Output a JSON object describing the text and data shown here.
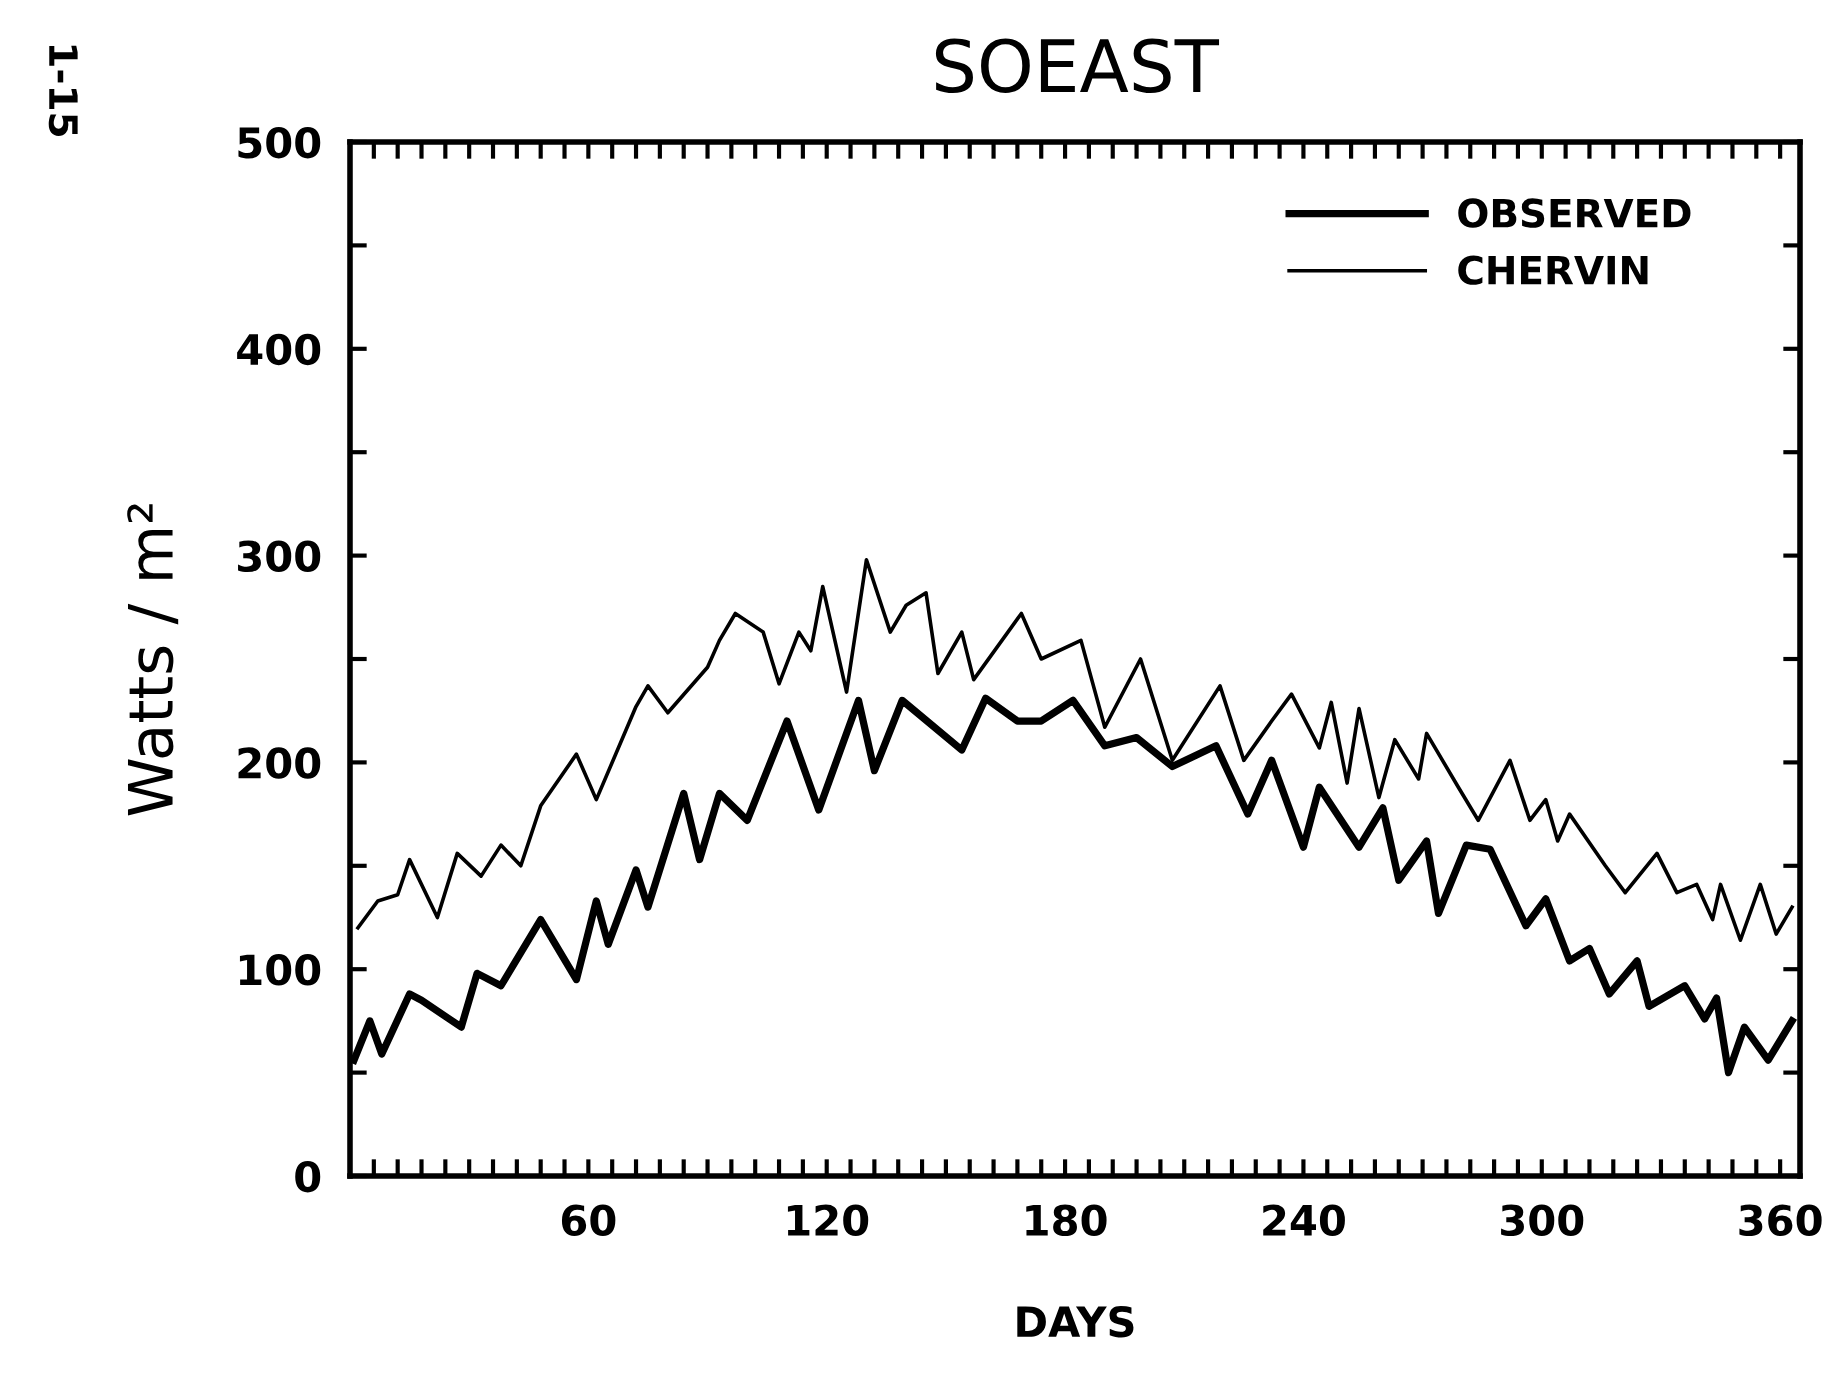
{
  "chart_data": {
    "type": "line",
    "title": "SOEAST",
    "xlabel": "DAYS",
    "ylabel": "Watts / m²",
    "annotations": [
      "1-15"
    ],
    "xlim": [
      0,
      365
    ],
    "ylim": [
      0,
      500
    ],
    "xticks": [
      {
        "value": 6,
        "label": null
      },
      {
        "value": 12,
        "label": null
      },
      {
        "value": 18,
        "label": null
      },
      {
        "value": 24,
        "label": null
      },
      {
        "value": 30,
        "label": null
      },
      {
        "value": 36,
        "label": null
      },
      {
        "value": 42,
        "label": null
      },
      {
        "value": 48,
        "label": null
      },
      {
        "value": 54,
        "label": null
      },
      60,
      {
        "value": 66,
        "label": null
      },
      {
        "value": 72,
        "label": null
      },
      {
        "value": 78,
        "label": null
      },
      {
        "value": 84,
        "label": null
      },
      {
        "value": 90,
        "label": null
      },
      {
        "value": 96,
        "label": null
      },
      {
        "value": 102,
        "label": null
      },
      {
        "value": 108,
        "label": null
      },
      {
        "value": 114,
        "label": null
      },
      120,
      {
        "value": 126,
        "label": null
      },
      {
        "value": 132,
        "label": null
      },
      {
        "value": 138,
        "label": null
      },
      {
        "value": 144,
        "label": null
      },
      {
        "value": 150,
        "label": null
      },
      {
        "value": 156,
        "label": null
      },
      {
        "value": 162,
        "label": null
      },
      {
        "value": 168,
        "label": null
      },
      {
        "value": 174,
        "label": null
      },
      180,
      {
        "value": 186,
        "label": null
      },
      {
        "value": 192,
        "label": null
      },
      {
        "value": 198,
        "label": null
      },
      {
        "value": 204,
        "label": null
      },
      {
        "value": 210,
        "label": null
      },
      {
        "value": 216,
        "label": null
      },
      {
        "value": 222,
        "label": null
      },
      {
        "value": 228,
        "label": null
      },
      {
        "value": 234,
        "label": null
      },
      240,
      {
        "value": 246,
        "label": null
      },
      {
        "value": 252,
        "label": null
      },
      {
        "value": 258,
        "label": null
      },
      {
        "value": 264,
        "label": null
      },
      {
        "value": 270,
        "label": null
      },
      {
        "value": 276,
        "label": null
      },
      {
        "value": 282,
        "label": null
      },
      {
        "value": 288,
        "label": null
      },
      {
        "value": 294,
        "label": null
      },
      300,
      {
        "value": 306,
        "label": null
      },
      {
        "value": 312,
        "label": null
      },
      {
        "value": 318,
        "label": null
      },
      {
        "value": 324,
        "label": null
      },
      {
        "value": 330,
        "label": null
      },
      {
        "value": 336,
        "label": null
      },
      {
        "value": 342,
        "label": null
      },
      {
        "value": 348,
        "label": null
      },
      {
        "value": 354,
        "label": null
      },
      360
    ],
    "yticks": [
      0,
      {
        "value": 50,
        "label": null
      },
      100,
      {
        "value": 150,
        "label": null
      },
      200,
      {
        "value": 250,
        "label": null
      },
      300,
      {
        "value": 350,
        "label": null
      },
      400,
      {
        "value": 450,
        "label": null
      },
      500
    ],
    "legend": "top right",
    "grid": false,
    "series": [
      {
        "name": "OBSERVED",
        "color": "#000000",
        "x": [
          1,
          5,
          8,
          15,
          18,
          28,
          32,
          38,
          48,
          57,
          62,
          65,
          72,
          75,
          84,
          88,
          93,
          100,
          110,
          118,
          128,
          132,
          139,
          154,
          160,
          168,
          174,
          182,
          190,
          198,
          207,
          218,
          226,
          232,
          240,
          244,
          254,
          260,
          264,
          271,
          274,
          281,
          287,
          296,
          301,
          307,
          312,
          317,
          324,
          327,
          336,
          341,
          344,
          347,
          351,
          357,
          363
        ],
        "values": [
          56,
          75,
          59,
          88,
          85,
          72,
          98,
          92,
          124,
          95,
          133,
          112,
          148,
          130,
          185,
          153,
          185,
          172,
          220,
          177,
          230,
          196,
          230,
          206,
          231,
          220,
          220,
          230,
          208,
          212,
          198,
          208,
          175,
          201,
          159,
          188,
          159,
          178,
          143,
          162,
          127,
          160,
          158,
          121,
          134,
          104,
          110,
          88,
          104,
          82,
          92,
          76,
          86,
          50,
          72,
          56,
          75
        ]
      },
      {
        "name": "CHERVIN",
        "color": "#000000",
        "x": [
          2,
          7,
          12,
          15,
          22,
          27,
          33,
          38,
          43,
          48,
          57,
          62,
          72,
          75,
          80,
          90,
          93,
          97,
          104,
          108,
          113,
          116,
          119,
          125,
          130,
          136,
          140,
          145,
          148,
          154,
          157,
          169,
          174,
          184,
          190,
          199,
          207,
          219,
          225,
          232,
          237,
          244,
          247,
          251,
          254,
          259,
          263,
          269,
          271,
          279,
          284,
          292,
          297,
          301,
          304,
          307,
          316,
          321,
          329,
          334,
          339,
          343,
          345,
          350,
          355,
          359,
          363
        ],
        "values": [
          120,
          133,
          136,
          153,
          125,
          156,
          145,
          160,
          150,
          179,
          204,
          182,
          227,
          237,
          224,
          246,
          259,
          272,
          263,
          238,
          263,
          254,
          285,
          234,
          298,
          263,
          276,
          282,
          243,
          263,
          240,
          272,
          250,
          259,
          217,
          250,
          201,
          237,
          201,
          220,
          233,
          207,
          229,
          190,
          226,
          183,
          211,
          192,
          214,
          188,
          172,
          201,
          172,
          182,
          162,
          175,
          150,
          137,
          156,
          137,
          141,
          124,
          141,
          114,
          141,
          117,
          130
        ]
      }
    ]
  }
}
